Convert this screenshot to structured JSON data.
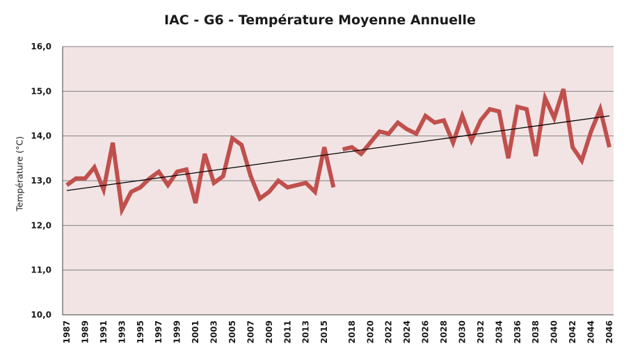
{
  "chart_data": {
    "type": "line",
    "title": "IAC - G6 - Température Moyenne Annuelle",
    "xlabel": "",
    "ylabel": "Température (°C)",
    "ylim": [
      10.0,
      16.0
    ],
    "y_ticks": [
      "10,0",
      "11,0",
      "12,0",
      "13,0",
      "14,0",
      "15,0",
      "16,0"
    ],
    "x_ticks": [
      "1987",
      "1989",
      "1991",
      "1993",
      "1995",
      "1997",
      "1999",
      "2001",
      "2003",
      "2005",
      "2007",
      "2009",
      "2011",
      "2013",
      "2015",
      "2018",
      "2020",
      "2022",
      "2024",
      "2026",
      "2028",
      "2030",
      "2032",
      "2034",
      "2036",
      "2038",
      "2040",
      "2042",
      "2044",
      "2046"
    ],
    "grid": true,
    "legend": "none",
    "plot_background": "#f2e4e4",
    "colors": {
      "series": "#c0504d",
      "trend": "#000000",
      "grid": "#7f7f7f"
    },
    "series": [
      {
        "type": "line",
        "segments": [
          {
            "x": [
              1987,
              1988,
              1989,
              1990,
              1991,
              1992,
              1993,
              1994,
              1995,
              1996,
              1997,
              1998,
              1999,
              2000,
              2001,
              2002,
              2003,
              2004,
              2005,
              2006,
              2007,
              2008,
              2009,
              2010,
              2011,
              2012,
              2013,
              2014,
              2015,
              2016
            ],
            "values": [
              12.9,
              13.05,
              13.05,
              13.3,
              12.8,
              13.85,
              12.35,
              12.75,
              12.85,
              13.05,
              13.2,
              12.9,
              13.2,
              13.25,
              12.5,
              13.6,
              12.95,
              13.1,
              13.95,
              13.8,
              13.1,
              12.6,
              12.75,
              13.0,
              12.85,
              12.9,
              12.95,
              12.75,
              13.75,
              12.85
            ]
          },
          {
            "x": [
              2017,
              2018,
              2019,
              2020,
              2021,
              2022,
              2023,
              2024,
              2025,
              2026,
              2027,
              2028,
              2029,
              2030,
              2031,
              2032,
              2033,
              2034,
              2035,
              2036,
              2037,
              2038,
              2039,
              2040,
              2041,
              2042,
              2043,
              2044,
              2045,
              2046
            ],
            "values": [
              13.7,
              13.75,
              13.6,
              13.85,
              14.1,
              14.05,
              14.3,
              14.15,
              14.05,
              14.45,
              14.3,
              14.35,
              13.85,
              14.45,
              13.9,
              14.35,
              14.6,
              14.55,
              13.5,
              14.65,
              14.6,
              13.55,
              14.85,
              14.4,
              15.05,
              13.75,
              13.45,
              14.1,
              14.6,
              13.75
            ]
          }
        ]
      },
      {
        "type": "trendline",
        "x": [
          1987,
          2046
        ],
        "values": [
          12.78,
          14.45
        ]
      }
    ]
  }
}
